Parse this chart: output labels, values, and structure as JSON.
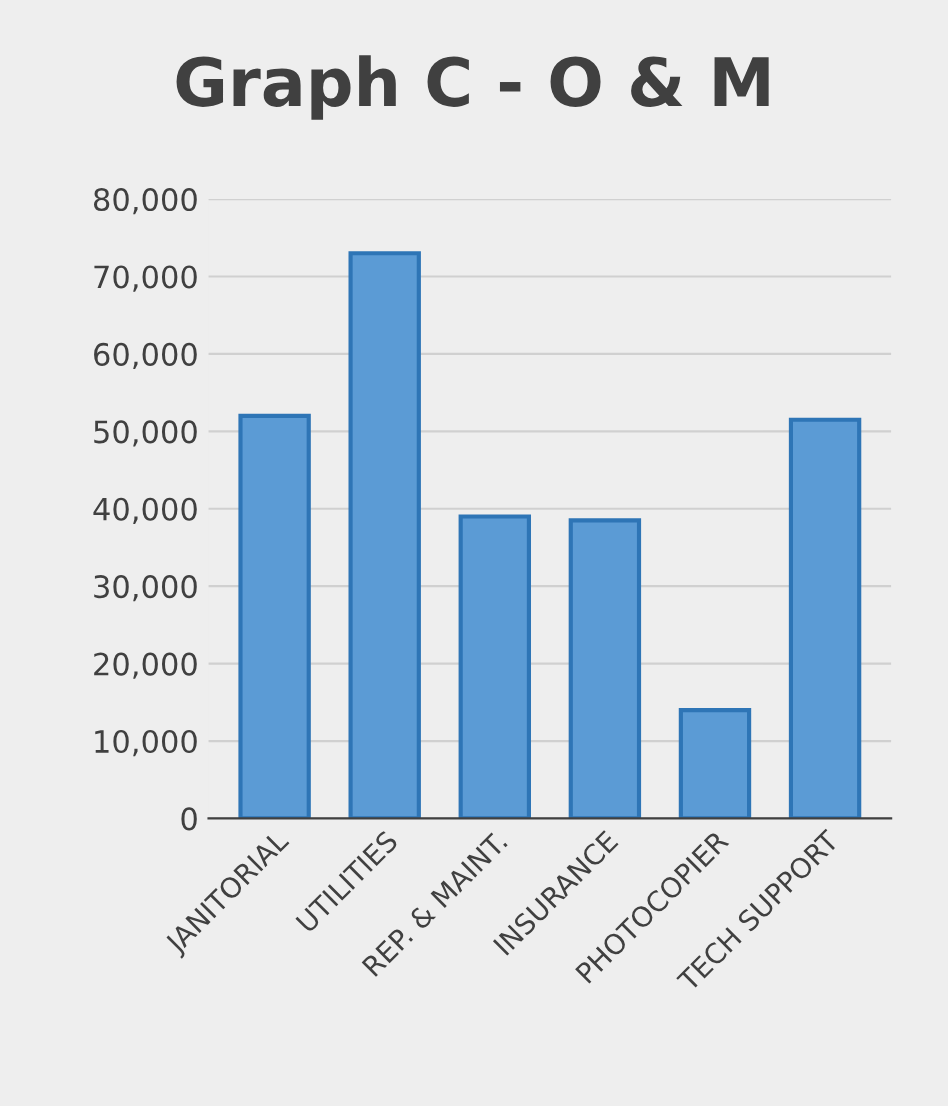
{
  "chart_data": {
    "type": "bar",
    "title": "Graph C - O & M",
    "categories": [
      "JANITORIAL",
      "UTILITIES",
      "REP. & MAINT.",
      "INSURANCE",
      "PHOTOCOPIER",
      "TECH SUPPORT"
    ],
    "values": [
      52000,
      73000,
      39000,
      38500,
      14000,
      51500
    ],
    "color": "#5b9bd5",
    "ylim": [
      0,
      80000
    ],
    "yticks": [
      {
        "value": 0,
        "label": "0"
      },
      {
        "value": 10000,
        "label": "10,000"
      },
      {
        "value": 20000,
        "label": "20,000"
      },
      {
        "value": 30000,
        "label": "30,000"
      },
      {
        "value": 40000,
        "label": "40,000"
      },
      {
        "value": 50000,
        "label": "50,000"
      },
      {
        "value": 60000,
        "label": "60,000"
      },
      {
        "value": 70000,
        "label": "70,000"
      },
      {
        "value": 80000,
        "label": "80,000"
      }
    ],
    "grid": "y"
  }
}
